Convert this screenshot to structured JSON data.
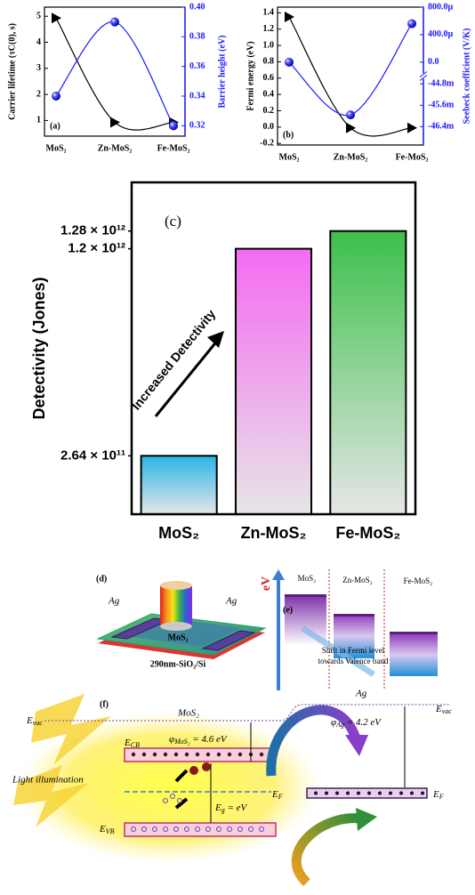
{
  "chart_data": [
    {
      "type": "line",
      "panel_label": "(a)",
      "categories": [
        "MoS₂",
        "Zn-MoS₂",
        "Fe-MoS₂"
      ],
      "ylabel": "Carrier lifetime (τC(0), s)",
      "y2label": "Barrier height (eV)",
      "ylim": [
        0.4,
        5.35
      ],
      "yticks": [
        1,
        2,
        3,
        4,
        5
      ],
      "y2lim": [
        0.313,
        0.4
      ],
      "y2ticks": [
        0.32,
        0.34,
        0.36,
        0.38,
        {
          "value": 0.4,
          "label": "0.40"
        }
      ],
      "series": [
        {
          "color": "#000000",
          "marker": "triangle",
          "values": [
            4.93,
            0.93,
            0.93
          ]
        },
        {
          "color": "#1a1aff",
          "marker": "sphere",
          "axis": "y2",
          "values": [
            0.34,
            0.39,
            0.32
          ]
        }
      ]
    },
    {
      "type": "line",
      "panel_label": "(b)",
      "categories": [
        "MoS₂",
        "Zn-MoS₂",
        "Fe-MoS₂"
      ],
      "ylabel": "Fermi energy (eV)",
      "y2label": "Seebeck coefficient (V/K)",
      "ylim": [
        -0.22,
        1.47
      ],
      "yticks": [
        -0.2,
        {
          "value": 0,
          "label": "0.0"
        },
        0.2,
        0.4,
        0.6,
        0.8,
        {
          "value": 1,
          "label": "1.0"
        },
        1.2,
        1.4
      ],
      "y2_segments": [
        {
          "y2lim": [
            -0.04709,
            -0.04464
          ],
          "y2ticks": [
            {
              "value": -0.0464,
              "label": "-46.4m"
            },
            {
              "value": -0.0456,
              "label": "-45.6m"
            },
            {
              "value": -0.0448,
              "label": "-44.8m"
            }
          ]
        },
        {
          "y2lim": [
            -0.00015,
            0.0008
          ],
          "y2ticks": [
            {
              "value": 0,
              "label": "0.0"
            },
            {
              "value": 0.0004,
              "label": "400.0µ"
            },
            {
              "value": 0.0008,
              "label": "800.0µ"
            }
          ]
        }
      ],
      "series": [
        {
          "color": "#000000",
          "marker": "triangle",
          "values": [
            1.35,
            -0.01,
            -0.01
          ]
        },
        {
          "color": "#1a1aff",
          "marker": "sphere",
          "axis": "y2",
          "values": [
            0,
            -0.04596,
            0.00056
          ]
        }
      ]
    },
    {
      "type": "bar",
      "panel_label": "(c)",
      "categories": [
        "MoS₂",
        "Zn-MoS₂",
        "Fe-MoS₂"
      ],
      "ylabel": "Detectivity (Jones)",
      "annotation": "Increased Detectivity",
      "values": [
        264000000000,
        1200000000000,
        1280000000000
      ],
      "colors": [
        "#2bb5e6",
        "#f56af2",
        "#3cc04a"
      ],
      "ylim": [
        0,
        1500000000000
      ],
      "yticks": [
        {
          "value": 264000000000,
          "label": "2.64 × 10¹¹"
        },
        {
          "value": 1200000000000,
          "label": "1.2 × 10¹²"
        },
        {
          "value": 1280000000000,
          "label": "1.28 × 10¹²"
        }
      ]
    }
  ],
  "panel_d": {
    "label": "(d)",
    "electrodes": [
      "Ag",
      "Ag"
    ],
    "channel": "MoS₂",
    "substrate": "290nm-SiO₂/Si"
  },
  "panel_e": {
    "label": "(e)",
    "axis": "eV",
    "columns": [
      "MoS₂",
      "Zn-MoS₂",
      "Fe-MoS₂"
    ],
    "note": [
      "Shift in Fermi level",
      "towards Valence band"
    ]
  },
  "panel_f": {
    "label": "(f)",
    "vacuum_left": {
      "main": "E",
      "sub": "vac"
    },
    "vacuum_right": {
      "main": "E",
      "sub": "vac"
    },
    "mos2": "MoS₂",
    "ag": "Ag",
    "work_function_mos2": {
      "main": "φ",
      "sub": "MoS₂",
      "rest": " = 4.6 eV"
    },
    "work_function_ag": {
      "main": "φ",
      "sub": "Ag",
      "rest": " = 4.2 eV"
    },
    "conduction_band": {
      "main": "E",
      "sub": "CB"
    },
    "valence_band": {
      "main": "E",
      "sub": "VB"
    },
    "fermi_left": {
      "main": "E",
      "sub": "F"
    },
    "fermi_right": {
      "main": "E",
      "sub": "F"
    },
    "band_gap": {
      "main": "E",
      "sub": "g",
      "rest": " =    eV"
    },
    "light": "Light illumination"
  }
}
